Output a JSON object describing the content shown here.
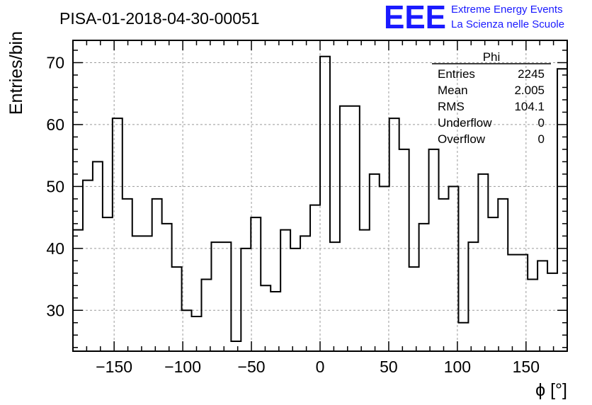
{
  "header": {
    "run_title": "PISA-01-2018-04-30-00051",
    "logo_text": "EEE",
    "logo_line1": "Extreme Energy Events",
    "logo_line2": "La Scienza nelle Scuole",
    "logo_color": "#1a1aff"
  },
  "stats_box": {
    "title": "Phi",
    "rows": [
      {
        "label": "Entries",
        "value": "2245"
      },
      {
        "label": "Mean",
        "value": "2.005"
      },
      {
        "label": "RMS",
        "value": "104.1"
      },
      {
        "label": "Underflow",
        "value": "0"
      },
      {
        "label": "Overflow",
        "value": "0"
      }
    ]
  },
  "chart_data": {
    "type": "histogram",
    "title": "PISA-01-2018-04-30-00051",
    "xlabel": "ϕ [°]",
    "ylabel": "Entries/bin",
    "xlim": [
      -180,
      180
    ],
    "ylim": [
      23.4,
      73.6
    ],
    "bin_width": 7.2,
    "x_ticks": [
      -150,
      -100,
      -50,
      0,
      50,
      100,
      150
    ],
    "x_tick_labels": [
      "−150",
      "−100",
      "−50",
      "0",
      "50",
      "100",
      "150"
    ],
    "y_ticks": [
      30,
      40,
      50,
      60,
      70
    ],
    "y_tick_labels": [
      "30",
      "40",
      "50",
      "60",
      "70"
    ],
    "grid": true,
    "line_color": "#000000",
    "values": [
      43,
      51,
      54,
      45,
      61,
      48,
      42,
      42,
      48,
      44,
      37,
      30,
      29,
      35,
      41,
      41,
      25,
      40,
      45,
      34,
      33,
      43,
      40,
      42,
      47,
      71,
      41,
      63,
      63,
      43,
      52,
      50,
      61,
      56,
      37,
      44,
      56,
      48,
      50,
      28,
      41,
      52,
      45,
      48,
      39,
      39,
      35,
      38,
      36,
      69
    ]
  }
}
